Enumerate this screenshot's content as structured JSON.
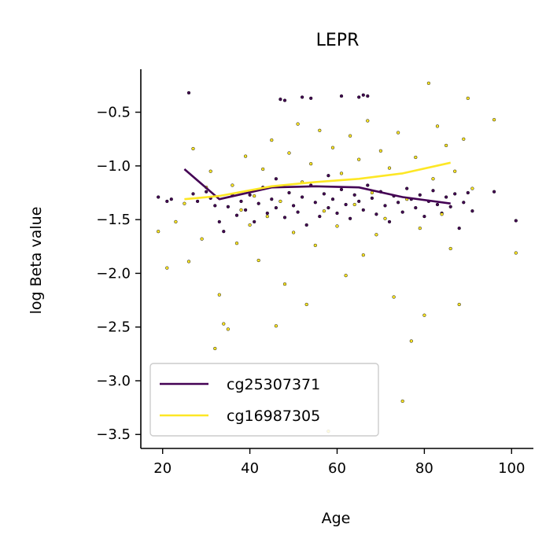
{
  "chart_data": {
    "type": "scatter",
    "title": "LEPR",
    "xlabel": "Age",
    "ylabel": "log Beta value",
    "xlim": [
      15,
      105
    ],
    "ylim": [
      -3.63,
      -0.1
    ],
    "xticks": [
      20,
      40,
      60,
      80,
      100
    ],
    "xtick_labels": [
      "20",
      "40",
      "60",
      "80",
      "100"
    ],
    "yticks": [
      -3.5,
      -3.0,
      -2.5,
      -2.0,
      -1.5,
      -1.0,
      -0.5
    ],
    "ytick_labels": [
      "−3.5",
      "−3.0",
      "−2.5",
      "−2.0",
      "−1.5",
      "−1.0",
      "−0.5"
    ],
    "grid": false,
    "legend_position": "bottom-left",
    "series": [
      {
        "name": "cg25307371",
        "color": "#440154",
        "trend": [
          {
            "x": 25,
            "y": -1.03
          },
          {
            "x": 33,
            "y": -1.31
          },
          {
            "x": 45,
            "y": -1.2
          },
          {
            "x": 55,
            "y": -1.19
          },
          {
            "x": 65,
            "y": -1.2
          },
          {
            "x": 75,
            "y": -1.29
          },
          {
            "x": 86,
            "y": -1.35
          }
        ],
        "points": [
          {
            "x": 19,
            "y": -1.29
          },
          {
            "x": 21,
            "y": -1.33
          },
          {
            "x": 22,
            "y": -1.31
          },
          {
            "x": 26,
            "y": -0.32
          },
          {
            "x": 27,
            "y": -1.26
          },
          {
            "x": 28,
            "y": -1.33
          },
          {
            "x": 30,
            "y": -1.24
          },
          {
            "x": 31,
            "y": -1.3
          },
          {
            "x": 32,
            "y": -1.37
          },
          {
            "x": 33,
            "y": -1.52
          },
          {
            "x": 34,
            "y": -1.61
          },
          {
            "x": 35,
            "y": -1.38
          },
          {
            "x": 36,
            "y": -1.27
          },
          {
            "x": 37,
            "y": -1.46
          },
          {
            "x": 38,
            "y": -1.33
          },
          {
            "x": 39,
            "y": -1.41
          },
          {
            "x": 40,
            "y": -1.27
          },
          {
            "x": 41,
            "y": -1.52
          },
          {
            "x": 42,
            "y": -1.35
          },
          {
            "x": 43,
            "y": -1.2
          },
          {
            "x": 44,
            "y": -1.44
          },
          {
            "x": 45,
            "y": -1.31
          },
          {
            "x": 46,
            "y": -1.39
          },
          {
            "x": 46,
            "y": -1.12
          },
          {
            "x": 47,
            "y": -0.38
          },
          {
            "x": 48,
            "y": -0.39
          },
          {
            "x": 48,
            "y": -1.48
          },
          {
            "x": 49,
            "y": -1.25
          },
          {
            "x": 50,
            "y": -1.37
          },
          {
            "x": 51,
            "y": -1.43
          },
          {
            "x": 52,
            "y": -1.29
          },
          {
            "x": 52,
            "y": -0.36
          },
          {
            "x": 53,
            "y": -1.55
          },
          {
            "x": 54,
            "y": -0.37
          },
          {
            "x": 54,
            "y": -1.18
          },
          {
            "x": 55,
            "y": -1.34
          },
          {
            "x": 56,
            "y": -1.47
          },
          {
            "x": 57,
            "y": -1.26
          },
          {
            "x": 58,
            "y": -1.39
          },
          {
            "x": 58,
            "y": -1.09
          },
          {
            "x": 59,
            "y": -1.31
          },
          {
            "x": 60,
            "y": -1.44
          },
          {
            "x": 61,
            "y": -0.35
          },
          {
            "x": 61,
            "y": -1.22
          },
          {
            "x": 62,
            "y": -1.36
          },
          {
            "x": 63,
            "y": -1.49
          },
          {
            "x": 64,
            "y": -1.27
          },
          {
            "x": 65,
            "y": -0.36
          },
          {
            "x": 65,
            "y": -1.33
          },
          {
            "x": 66,
            "y": -0.34
          },
          {
            "x": 66,
            "y": -1.41
          },
          {
            "x": 67,
            "y": -0.35
          },
          {
            "x": 67,
            "y": -1.18
          },
          {
            "x": 68,
            "y": -1.3
          },
          {
            "x": 69,
            "y": -1.45
          },
          {
            "x": 70,
            "y": -1.24
          },
          {
            "x": 71,
            "y": -1.37
          },
          {
            "x": 72,
            "y": -1.52
          },
          {
            "x": 73,
            "y": -1.28
          },
          {
            "x": 74,
            "y": -1.34
          },
          {
            "x": 75,
            "y": -1.43
          },
          {
            "x": 76,
            "y": -1.21
          },
          {
            "x": 77,
            "y": -1.31
          },
          {
            "x": 78,
            "y": -1.39
          },
          {
            "x": 79,
            "y": -1.27
          },
          {
            "x": 80,
            "y": -1.47
          },
          {
            "x": 81,
            "y": -1.33
          },
          {
            "x": 82,
            "y": -1.23
          },
          {
            "x": 83,
            "y": -1.36
          },
          {
            "x": 84,
            "y": -1.44
          },
          {
            "x": 85,
            "y": -1.29
          },
          {
            "x": 86,
            "y": -1.38
          },
          {
            "x": 87,
            "y": -1.26
          },
          {
            "x": 88,
            "y": -1.58
          },
          {
            "x": 89,
            "y": -1.34
          },
          {
            "x": 90,
            "y": -1.25
          },
          {
            "x": 91,
            "y": -1.42
          },
          {
            "x": 96,
            "y": -1.24
          },
          {
            "x": 101,
            "y": -1.51
          }
        ]
      },
      {
        "name": "cg16987305",
        "color": "#fde725",
        "trend": [
          {
            "x": 25,
            "y": -1.31
          },
          {
            "x": 33,
            "y": -1.28
          },
          {
            "x": 45,
            "y": -1.19
          },
          {
            "x": 55,
            "y": -1.15
          },
          {
            "x": 65,
            "y": -1.12
          },
          {
            "x": 75,
            "y": -1.07
          },
          {
            "x": 86,
            "y": -0.97
          }
        ],
        "points": [
          {
            "x": 19,
            "y": -1.61
          },
          {
            "x": 21,
            "y": -1.95
          },
          {
            "x": 23,
            "y": -1.52
          },
          {
            "x": 25,
            "y": -1.35
          },
          {
            "x": 26,
            "y": -1.89
          },
          {
            "x": 27,
            "y": -0.84
          },
          {
            "x": 29,
            "y": -1.68
          },
          {
            "x": 30,
            "y": -1.2
          },
          {
            "x": 31,
            "y": -1.05
          },
          {
            "x": 32,
            "y": -2.7
          },
          {
            "x": 33,
            "y": -2.2
          },
          {
            "x": 34,
            "y": -2.47
          },
          {
            "x": 35,
            "y": -2.52
          },
          {
            "x": 36,
            "y": -1.18
          },
          {
            "x": 37,
            "y": -1.72
          },
          {
            "x": 38,
            "y": -1.41
          },
          {
            "x": 39,
            "y": -0.91
          },
          {
            "x": 40,
            "y": -1.55
          },
          {
            "x": 41,
            "y": -1.28
          },
          {
            "x": 42,
            "y": -1.88
          },
          {
            "x": 43,
            "y": -1.03
          },
          {
            "x": 44,
            "y": -1.47
          },
          {
            "x": 45,
            "y": -0.76
          },
          {
            "x": 46,
            "y": -2.49
          },
          {
            "x": 47,
            "y": -1.33
          },
          {
            "x": 48,
            "y": -2.1
          },
          {
            "x": 49,
            "y": -0.88
          },
          {
            "x": 50,
            "y": -1.62
          },
          {
            "x": 51,
            "y": -0.61
          },
          {
            "x": 52,
            "y": -1.15
          },
          {
            "x": 53,
            "y": -2.29
          },
          {
            "x": 54,
            "y": -0.98
          },
          {
            "x": 55,
            "y": -1.74
          },
          {
            "x": 56,
            "y": -0.67
          },
          {
            "x": 57,
            "y": -1.42
          },
          {
            "x": 58,
            "y": -3.47
          },
          {
            "x": 59,
            "y": -0.83
          },
          {
            "x": 60,
            "y": -1.56
          },
          {
            "x": 61,
            "y": -1.07
          },
          {
            "x": 62,
            "y": -2.02
          },
          {
            "x": 63,
            "y": -0.72
          },
          {
            "x": 64,
            "y": -1.36
          },
          {
            "x": 65,
            "y": -0.94
          },
          {
            "x": 66,
            "y": -1.83
          },
          {
            "x": 67,
            "y": -0.58
          },
          {
            "x": 68,
            "y": -1.25
          },
          {
            "x": 69,
            "y": -1.64
          },
          {
            "x": 70,
            "y": -0.86
          },
          {
            "x": 71,
            "y": -1.49
          },
          {
            "x": 72,
            "y": -1.02
          },
          {
            "x": 73,
            "y": -2.22
          },
          {
            "x": 74,
            "y": -0.69
          },
          {
            "x": 75,
            "y": -3.19
          },
          {
            "x": 76,
            "y": -1.31
          },
          {
            "x": 77,
            "y": -2.63
          },
          {
            "x": 78,
            "y": -0.92
          },
          {
            "x": 79,
            "y": -1.58
          },
          {
            "x": 80,
            "y": -2.39
          },
          {
            "x": 81,
            "y": -0.23
          },
          {
            "x": 82,
            "y": -1.12
          },
          {
            "x": 83,
            "y": -0.63
          },
          {
            "x": 84,
            "y": -1.45
          },
          {
            "x": 85,
            "y": -0.81
          },
          {
            "x": 86,
            "y": -1.77
          },
          {
            "x": 87,
            "y": -1.05
          },
          {
            "x": 88,
            "y": -2.29
          },
          {
            "x": 89,
            "y": -0.75
          },
          {
            "x": 90,
            "y": -0.37
          },
          {
            "x": 91,
            "y": -1.21
          },
          {
            "x": 96,
            "y": -0.57
          },
          {
            "x": 101,
            "y": -1.81
          }
        ]
      }
    ]
  }
}
